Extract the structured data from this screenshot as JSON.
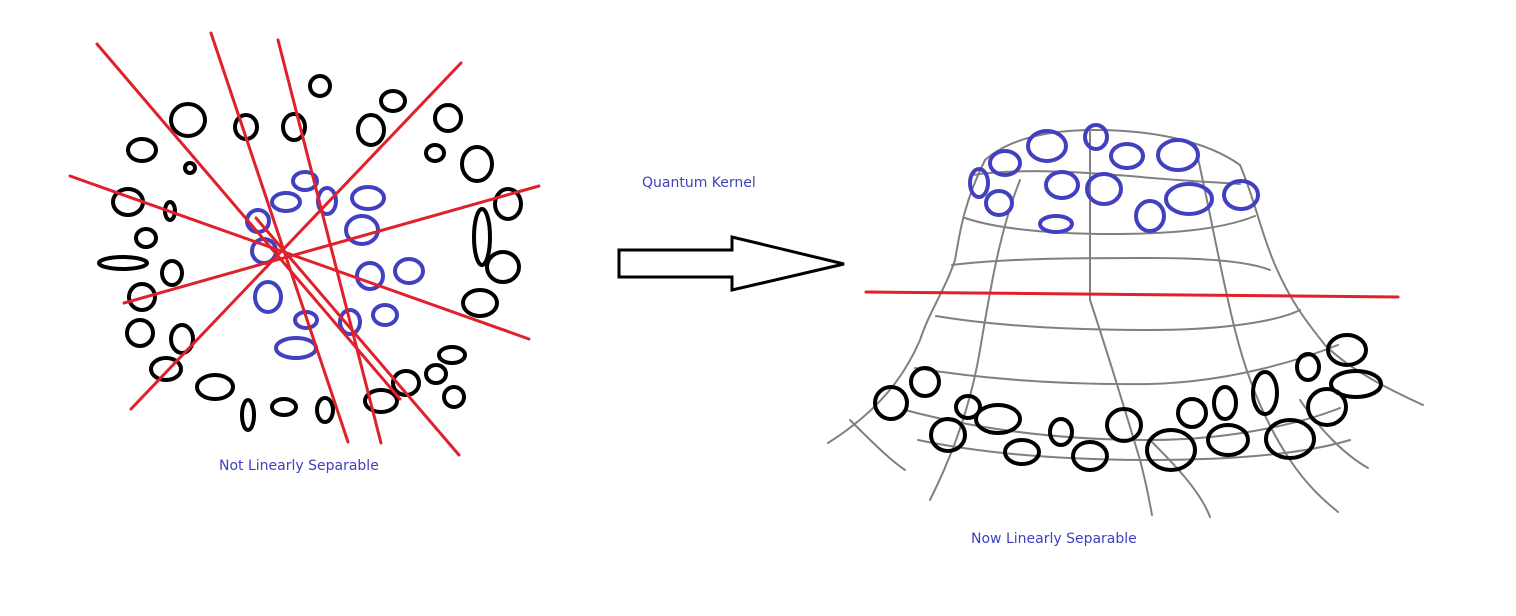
{
  "labels": {
    "left": "Not Linearly Separable",
    "kernel": "Quantum Kernel",
    "right": "Now Linearly Separable"
  },
  "colors": {
    "class_outer": "#000000",
    "class_inner": "#4040c0",
    "separator": "#e0202a",
    "surface": "#808080",
    "label_text": "#4040c0"
  }
}
